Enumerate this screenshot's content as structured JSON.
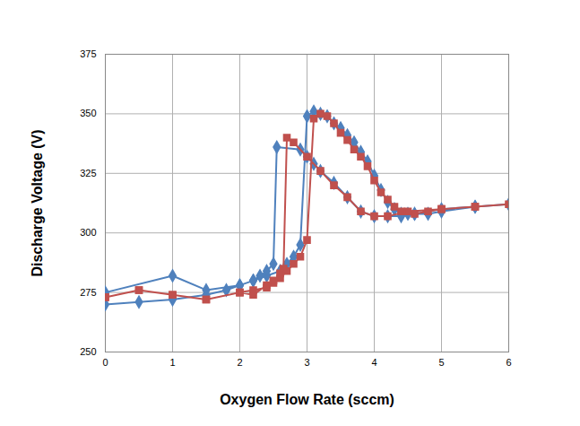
{
  "chart_data": {
    "type": "line",
    "xlabel": "Oxygen Flow Rate (sccm)",
    "ylabel": "Discharge Voltage (V)",
    "xlim": [
      0,
      6
    ],
    "xticks": [
      0,
      1,
      2,
      3,
      4,
      5,
      6
    ],
    "ylim": [
      250,
      375
    ],
    "yticks": [
      250,
      275,
      300,
      325,
      350,
      375
    ],
    "grid": true,
    "series": [
      {
        "color": "#4f81bd",
        "marker": "diamond",
        "x": [
          0,
          0.5,
          1,
          1.5,
          1.8,
          2,
          2.2,
          2.4,
          2.6,
          2.7,
          2.8,
          2.9,
          3.0,
          3.1,
          3.2,
          3.3,
          3.4,
          3.5,
          3.6,
          3.7,
          3.8,
          3.9,
          4.0,
          4.1,
          4.2,
          4.3,
          4.4,
          4.5,
          4.6,
          4.8,
          5,
          5.5,
          6,
          5.5,
          5,
          4.6,
          4.4,
          4.2,
          4.0,
          3.8,
          3.6,
          3.4,
          3.2,
          3.1,
          3.0,
          2.9,
          2.55,
          2.5,
          2.4,
          2.3,
          2.2,
          2,
          1.5,
          1,
          0
        ],
        "values": [
          270,
          271,
          272,
          274,
          276,
          278,
          280,
          282,
          284,
          287,
          290,
          295,
          349,
          351,
          350,
          349,
          346,
          344,
          341,
          338,
          334,
          330,
          324,
          318,
          313,
          310,
          308,
          308,
          308,
          308,
          309,
          311,
          312,
          311,
          310,
          308,
          307,
          307,
          307,
          309,
          315,
          321,
          326,
          329,
          332,
          335,
          336,
          287,
          284,
          282,
          280,
          278,
          276,
          282,
          275
        ]
      },
      {
        "color": "#c0504d",
        "marker": "square",
        "x": [
          0,
          0.5,
          1,
          1.5,
          2,
          2.2,
          2.4,
          2.5,
          2.6,
          2.7,
          2.8,
          2.9,
          3.0,
          3.1,
          3.2,
          3.3,
          3.4,
          3.5,
          3.6,
          3.7,
          3.8,
          3.9,
          4.0,
          4.1,
          4.2,
          4.3,
          4.4,
          4.6,
          4.8,
          5,
          5.5,
          6,
          5.5,
          5,
          4.5,
          4.2,
          4.0,
          3.8,
          3.6,
          3.4,
          3.2,
          3.0,
          2.8,
          2.7,
          2.65,
          2.6,
          2.5,
          2.4,
          2.2,
          2,
          1.5,
          1,
          0.5,
          0
        ],
        "values": [
          273,
          276,
          274,
          272,
          275,
          274,
          278,
          280,
          281,
          284,
          287,
          290,
          297,
          348,
          350,
          349,
          346,
          342,
          339,
          335,
          332,
          328,
          322,
          317,
          314,
          311,
          309,
          308,
          309,
          310,
          311,
          312,
          311,
          310,
          309,
          307,
          307,
          309,
          315,
          320,
          326,
          332,
          338,
          340,
          285,
          283,
          279,
          277,
          276,
          275,
          272,
          274,
          276,
          273
        ]
      }
    ]
  }
}
